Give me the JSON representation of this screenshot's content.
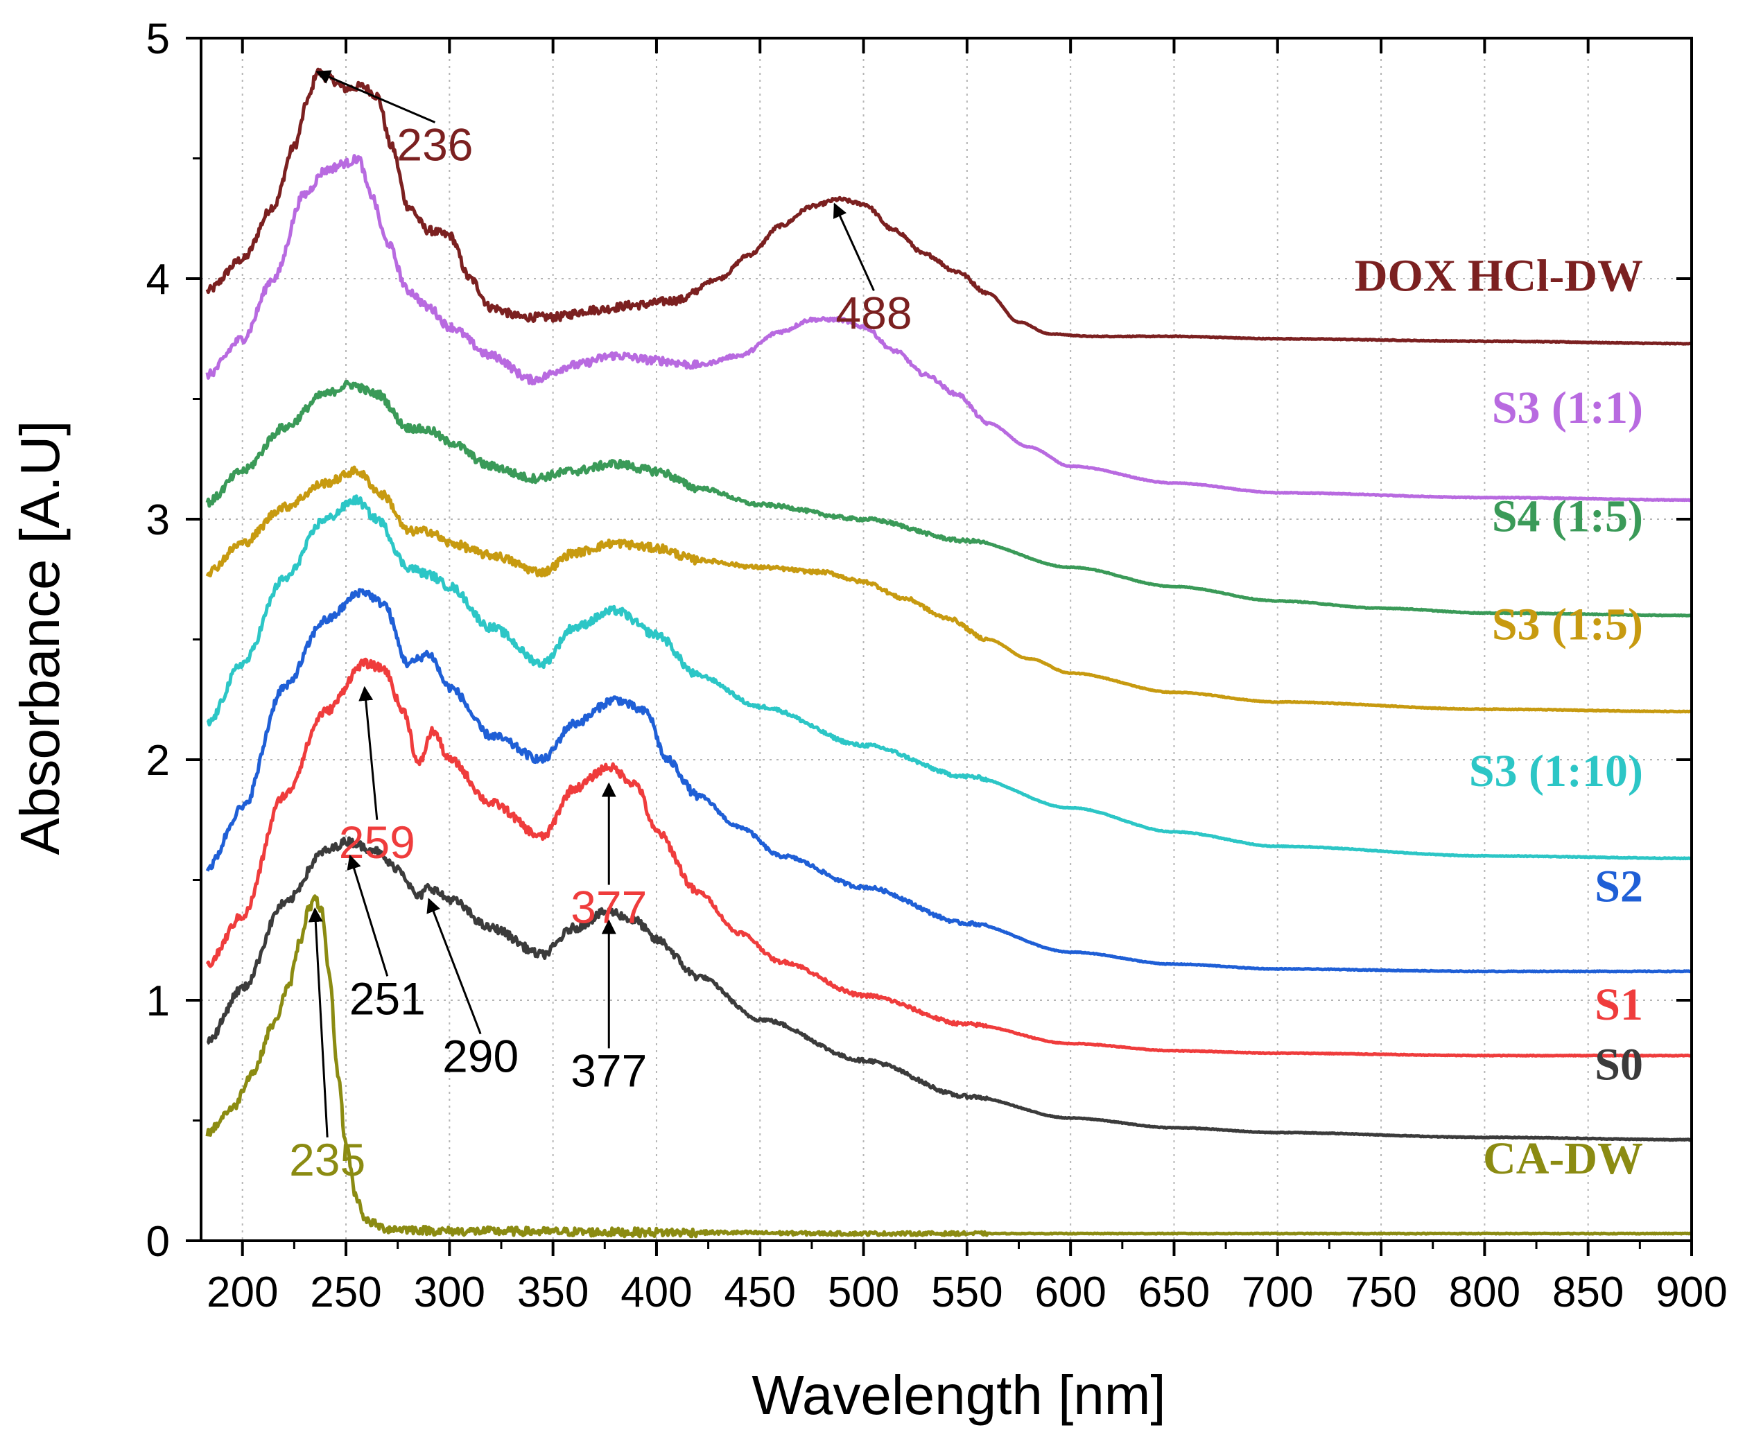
{
  "chart_data": {
    "type": "line",
    "title": "",
    "xlabel": "Wavelength [nm]",
    "ylabel": "Absorbance [A.U]",
    "xlim": [
      180,
      900
    ],
    "ylim": [
      0,
      5
    ],
    "x_ticks": [
      200,
      250,
      300,
      350,
      400,
      450,
      500,
      550,
      600,
      650,
      700,
      750,
      800,
      850,
      900
    ],
    "y_ticks": [
      0,
      1,
      2,
      3,
      4,
      5
    ],
    "grid": true,
    "legend": "inline labels at right end of each curve",
    "series": [
      {
        "name": "DOX HCl-DW",
        "color": "#7b2020",
        "x": [
          183,
          200,
          215,
          225,
          232,
          236,
          242,
          250,
          258,
          265,
          272,
          280,
          290,
          300,
          310,
          320,
          335,
          350,
          370,
          390,
          410,
          430,
          445,
          460,
          475,
          488,
          500,
          515,
          530,
          545,
          560,
          575,
          590,
          610,
          650,
          700,
          800,
          900
        ],
        "y": [
          3.95,
          4.08,
          4.3,
          4.55,
          4.75,
          4.86,
          4.83,
          4.79,
          4.8,
          4.76,
          4.55,
          4.3,
          4.2,
          4.18,
          4.0,
          3.88,
          3.84,
          3.84,
          3.87,
          3.89,
          3.91,
          4.0,
          4.1,
          4.22,
          4.3,
          4.33,
          4.31,
          4.2,
          4.1,
          4.03,
          3.94,
          3.82,
          3.77,
          3.76,
          3.76,
          3.75,
          3.74,
          3.73
        ]
      },
      {
        "name": "S3 (1:1)",
        "color": "#b86ae0",
        "x": [
          183,
          200,
          215,
          230,
          240,
          250,
          256,
          262,
          270,
          280,
          290,
          300,
          320,
          340,
          360,
          380,
          400,
          420,
          440,
          460,
          475,
          488,
          500,
          515,
          530,
          545,
          560,
          580,
          600,
          650,
          700,
          800,
          900
        ],
        "y": [
          3.6,
          3.75,
          4.0,
          4.35,
          4.45,
          4.48,
          4.5,
          4.35,
          4.15,
          3.95,
          3.88,
          3.8,
          3.68,
          3.58,
          3.64,
          3.68,
          3.66,
          3.64,
          3.68,
          3.78,
          3.83,
          3.83,
          3.8,
          3.7,
          3.6,
          3.52,
          3.4,
          3.3,
          3.22,
          3.15,
          3.11,
          3.09,
          3.08
        ]
      },
      {
        "name": "S4 (1:5)",
        "color": "#3a9a58",
        "x": [
          183,
          200,
          220,
          240,
          252,
          265,
          280,
          290,
          300,
          320,
          340,
          360,
          380,
          400,
          420,
          450,
          500,
          550,
          600,
          650,
          700,
          750,
          800,
          900
        ],
        "y": [
          3.07,
          3.2,
          3.38,
          3.52,
          3.56,
          3.52,
          3.38,
          3.37,
          3.32,
          3.22,
          3.17,
          3.2,
          3.23,
          3.2,
          3.13,
          3.06,
          3.0,
          2.91,
          2.8,
          2.72,
          2.66,
          2.63,
          2.61,
          2.6
        ]
      },
      {
        "name": "S3 (1:5)",
        "color": "#c79a10",
        "x": [
          183,
          200,
          220,
          240,
          255,
          268,
          280,
          290,
          300,
          320,
          345,
          360,
          380,
          400,
          420,
          450,
          480,
          500,
          520,
          540,
          560,
          580,
          600,
          650,
          700,
          800,
          900
        ],
        "y": [
          2.78,
          2.9,
          3.05,
          3.15,
          3.2,
          3.1,
          2.95,
          2.95,
          2.9,
          2.85,
          2.78,
          2.86,
          2.9,
          2.88,
          2.83,
          2.8,
          2.78,
          2.74,
          2.67,
          2.59,
          2.5,
          2.42,
          2.36,
          2.28,
          2.24,
          2.21,
          2.2
        ]
      },
      {
        "name": "S3 (1:10)",
        "color": "#2cc6c6",
        "x": [
          183,
          200,
          220,
          240,
          255,
          265,
          280,
          290,
          300,
          320,
          345,
          360,
          380,
          400,
          420,
          450,
          500,
          550,
          600,
          650,
          700,
          800,
          900
        ],
        "y": [
          2.15,
          2.4,
          2.75,
          3.0,
          3.08,
          3.0,
          2.8,
          2.77,
          2.72,
          2.55,
          2.4,
          2.55,
          2.62,
          2.52,
          2.35,
          2.22,
          2.06,
          1.93,
          1.8,
          1.7,
          1.64,
          1.6,
          1.59
        ]
      },
      {
        "name": "S2",
        "color": "#1f5fd6",
        "x": [
          183,
          200,
          220,
          240,
          258,
          268,
          280,
          290,
          300,
          320,
          345,
          360,
          380,
          395,
          405,
          420,
          440,
          460,
          500,
          550,
          600,
          650,
          700,
          800,
          900
        ],
        "y": [
          1.55,
          1.8,
          2.3,
          2.58,
          2.7,
          2.65,
          2.4,
          2.44,
          2.3,
          2.1,
          2.0,
          2.15,
          2.25,
          2.2,
          2.0,
          1.85,
          1.72,
          1.6,
          1.47,
          1.32,
          1.2,
          1.15,
          1.13,
          1.12,
          1.12
        ]
      },
      {
        "name": "S1",
        "color": "#ef3c3c",
        "x": [
          183,
          200,
          220,
          240,
          259,
          268,
          278,
          285,
          292,
          300,
          320,
          345,
          360,
          377,
          390,
          400,
          420,
          440,
          460,
          500,
          550,
          600,
          650,
          700,
          800,
          900
        ],
        "y": [
          1.15,
          1.35,
          1.85,
          2.2,
          2.4,
          2.38,
          2.2,
          1.98,
          2.12,
          2.0,
          1.82,
          1.68,
          1.88,
          1.97,
          1.9,
          1.7,
          1.45,
          1.28,
          1.16,
          1.02,
          0.9,
          0.82,
          0.79,
          0.78,
          0.77,
          0.77
        ]
      },
      {
        "name": "S0",
        "color": "#3b3b3b",
        "x": [
          183,
          200,
          220,
          240,
          251,
          262,
          275,
          285,
          290,
          300,
          320,
          345,
          360,
          377,
          390,
          400,
          420,
          450,
          500,
          550,
          600,
          650,
          700,
          800,
          900
        ],
        "y": [
          0.83,
          1.05,
          1.4,
          1.62,
          1.66,
          1.63,
          1.55,
          1.43,
          1.47,
          1.42,
          1.3,
          1.19,
          1.3,
          1.37,
          1.33,
          1.25,
          1.1,
          0.92,
          0.75,
          0.6,
          0.51,
          0.47,
          0.45,
          0.43,
          0.42
        ]
      },
      {
        "name": "CA-DW",
        "color": "#8b8b12",
        "x": [
          183,
          195,
          205,
          215,
          222,
          228,
          232,
          235,
          238,
          242,
          246,
          250,
          255,
          260,
          270,
          300,
          400,
          500,
          600,
          700,
          800,
          900
        ],
        "y": [
          0.45,
          0.55,
          0.7,
          0.9,
          1.05,
          1.25,
          1.38,
          1.42,
          1.38,
          1.1,
          0.7,
          0.4,
          0.18,
          0.08,
          0.05,
          0.04,
          0.035,
          0.03,
          0.03,
          0.03,
          0.03,
          0.03
        ]
      }
    ],
    "series_labels": [
      "DOX HCl-DW",
      "S3 (1:1)",
      "S4 (1:5)",
      "S3 (1:5)",
      "S3 (1:10)",
      "S2",
      "S1",
      "S0",
      "CA-DW"
    ],
    "annotations": [
      {
        "text": "236",
        "color": "#7b2020",
        "target": [
          236,
          4.86
        ],
        "label": [
          293,
          4.65
        ]
      },
      {
        "text": "488",
        "color": "#7b2020",
        "target": [
          486,
          4.31
        ],
        "label": [
          505,
          3.95
        ]
      },
      {
        "text": "259",
        "color": "#ef3c3c",
        "target": [
          259,
          2.3
        ],
        "label": [
          265,
          1.75
        ]
      },
      {
        "text": "377",
        "color": "#ef3c3c",
        "target": [
          377,
          1.9
        ],
        "label": [
          377,
          1.48
        ]
      },
      {
        "text": "251",
        "color": "#000000",
        "target": [
          252,
          1.6
        ],
        "label": [
          270,
          1.1
        ]
      },
      {
        "text": "290",
        "color": "#000000",
        "target": [
          290,
          1.42
        ],
        "label": [
          315,
          0.86
        ]
      },
      {
        "text": "377",
        "color": "#000000",
        "target": [
          377,
          1.33
        ],
        "label": [
          377,
          0.8
        ]
      },
      {
        "text": "235",
        "color": "#8b8b12",
        "target": [
          235,
          1.38
        ],
        "label": [
          241,
          0.43
        ]
      }
    ]
  }
}
